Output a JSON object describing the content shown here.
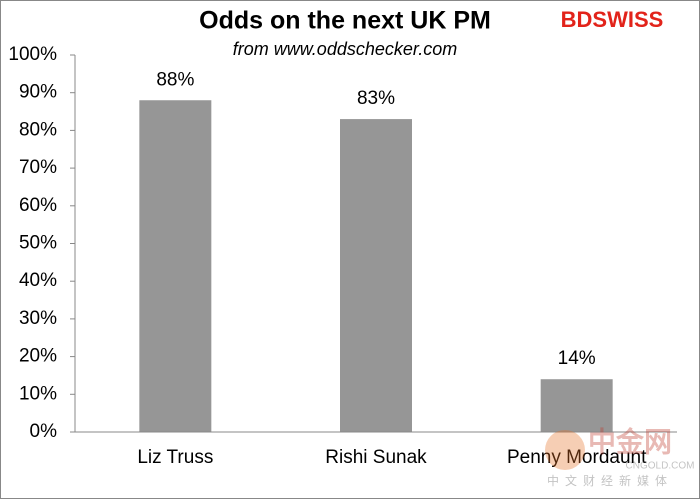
{
  "chart_data": {
    "type": "bar",
    "title": "Odds on the next UK PM",
    "subtitle": "from www.oddschecker.com",
    "categories": [
      "Liz Truss",
      "Rishi Sunak",
      "Penny Mordaunt"
    ],
    "values": [
      88,
      83,
      14
    ],
    "value_labels": [
      "88%",
      "83%",
      "14%"
    ],
    "color": "#969696",
    "ylim": [
      0,
      100
    ],
    "yticks": [
      {
        "value": 0,
        "label": "0%"
      },
      {
        "value": 10,
        "label": "10%"
      },
      {
        "value": 20,
        "label": "20%"
      },
      {
        "value": 30,
        "label": "30%"
      },
      {
        "value": 40,
        "label": "40%"
      },
      {
        "value": 50,
        "label": "50%"
      },
      {
        "value": 60,
        "label": "60%"
      },
      {
        "value": 70,
        "label": "70%"
      },
      {
        "value": 80,
        "label": "80%"
      },
      {
        "value": 90,
        "label": "90%"
      },
      {
        "value": 100,
        "label": "100%"
      }
    ],
    "grid": false
  },
  "logo": "BDSWISS",
  "watermark": {
    "name": "中金网",
    "site": "CNGOLD.COM",
    "tagline": "中文财经新媒体"
  }
}
